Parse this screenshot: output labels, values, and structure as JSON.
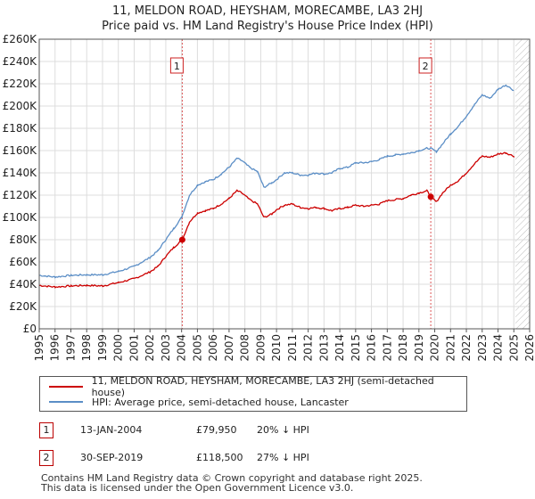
{
  "title_line1": "11, MELDON ROAD, HEYSHAM, MORECAMBE, LA3 2HJ",
  "title_line2": "Price paid vs. HM Land Registry's House Price Index (HPI)",
  "colors": {
    "red": "#cc0000",
    "blue": "#5b8ec6",
    "grid": "#dddddd",
    "hatch": "#bbbbbb",
    "marker_border": "#cc2222",
    "vline": "#dd5555"
  },
  "legend": {
    "red_label": "11, MELDON ROAD, HEYSHAM, MORECAMBE, LA3 2HJ (semi-detached house)",
    "blue_label": "HPI: Average price, semi-detached house, Lancaster"
  },
  "transactions": [
    {
      "num": "1",
      "date": "13-JAN-2004",
      "price": "£79,950",
      "hpi_change": "20% ↓ HPI"
    },
    {
      "num": "2",
      "date": "30-SEP-2019",
      "price": "£118,500",
      "hpi_change": "27% ↓ HPI"
    }
  ],
  "footer": {
    "line1": "Contains HM Land Registry data © Crown copyright and database right 2025.",
    "line2": "This data is licensed under the Open Government Licence v3.0."
  },
  "chart_data": {
    "type": "line",
    "title": "Price paid vs. HM Land Registry's House Price Index (HPI)",
    "xlim": [
      1995,
      2026
    ],
    "ylim": [
      0,
      260000
    ],
    "x_ticks": [
      "1995",
      "1996",
      "1997",
      "1998",
      "1999",
      "2000",
      "2001",
      "2002",
      "2003",
      "2004",
      "2005",
      "2006",
      "2007",
      "2008",
      "2009",
      "2010",
      "2011",
      "2012",
      "2013",
      "2014",
      "2015",
      "2016",
      "2017",
      "2018",
      "2019",
      "2020",
      "2021",
      "2022",
      "2023",
      "2024",
      "2025",
      "2026"
    ],
    "y_ticks": [
      {
        "value": 0,
        "label": "£0"
      },
      {
        "value": 20000,
        "label": "£20K"
      },
      {
        "value": 40000,
        "label": "£40K"
      },
      {
        "value": 60000,
        "label": "£60K"
      },
      {
        "value": 80000,
        "label": "£80K"
      },
      {
        "value": 100000,
        "label": "£100K"
      },
      {
        "value": 120000,
        "label": "£120K"
      },
      {
        "value": 140000,
        "label": "£140K"
      },
      {
        "value": 160000,
        "label": "£160K"
      },
      {
        "value": 180000,
        "label": "£180K"
      },
      {
        "value": 200000,
        "label": "£200K"
      },
      {
        "value": 220000,
        "label": "£220K"
      },
      {
        "value": 240000,
        "label": "£240K"
      },
      {
        "value": 260000,
        "label": "£260K"
      }
    ],
    "forecast_start": 2025.1,
    "series": [
      {
        "name": "11, MELDON ROAD, HEYSHAM, MORECAMBE, LA3 2HJ (semi-detached house)",
        "color": "#cc0000",
        "x": [
          1995,
          1996,
          1997,
          1998,
          1999,
          2000,
          2001,
          2002,
          2002.5,
          2003,
          2003.5,
          2004.04,
          2004.5,
          2005,
          2005.5,
          2006,
          2006.5,
          2007,
          2007.5,
          2007.8,
          2008.3,
          2008.8,
          2009.2,
          2009.7,
          2010,
          2010.5,
          2011,
          2011.5,
          2012,
          2012.5,
          2013,
          2013.5,
          2014,
          2014.5,
          2015,
          2015.5,
          2016,
          2016.5,
          2017,
          2017.5,
          2018,
          2018.5,
          2019,
          2019.5,
          2019.75,
          2020.1,
          2020.5,
          2021,
          2021.5,
          2022,
          2022.5,
          2023,
          2023.5,
          2024,
          2024.5,
          2025
        ],
        "y": [
          39000,
          37500,
          38500,
          39000,
          38500,
          41500,
          45000,
          51000,
          56000,
          65000,
          73000,
          79950,
          96000,
          104000,
          106000,
          108000,
          112000,
          117000,
          124000,
          122000,
          116000,
          112000,
          100000,
          103000,
          107000,
          111000,
          112000,
          109000,
          108000,
          109000,
          108000,
          106000,
          108000,
          109000,
          111000,
          110000,
          111000,
          112000,
          115000,
          116000,
          117000,
          120000,
          122000,
          124000,
          118500,
          114000,
          122000,
          129000,
          133000,
          140000,
          148000,
          155000,
          154000,
          157000,
          158000,
          155000
        ]
      },
      {
        "name": "HPI: Average price, semi-detached house, Lancaster",
        "color": "#5b8ec6",
        "x": [
          1995,
          1996,
          1997,
          1998,
          1999,
          2000,
          2001,
          2002,
          2002.5,
          2003,
          2003.5,
          2004,
          2004.5,
          2005,
          2005.5,
          2006,
          2006.5,
          2007,
          2007.5,
          2007.8,
          2008.3,
          2008.8,
          2009.2,
          2009.7,
          2010,
          2010.5,
          2011,
          2011.5,
          2012,
          2012.5,
          2013,
          2013.5,
          2014,
          2014.5,
          2015,
          2015.5,
          2016,
          2016.5,
          2017,
          2017.5,
          2018,
          2018.5,
          2019,
          2019.5,
          2019.75,
          2020.1,
          2020.5,
          2021,
          2021.5,
          2022,
          2022.5,
          2023,
          2023.5,
          2024,
          2024.5,
          2025
        ],
        "y": [
          48000,
          46500,
          48000,
          48500,
          48500,
          51500,
          56000,
          64000,
          70000,
          80000,
          90000,
          100000,
          120000,
          129000,
          132000,
          134000,
          139000,
          145000,
          153000,
          151000,
          145000,
          141000,
          127000,
          131000,
          134000,
          140000,
          140000,
          138000,
          138000,
          140000,
          139000,
          140000,
          144000,
          145000,
          149000,
          149000,
          150000,
          152000,
          155000,
          156000,
          157000,
          158000,
          160000,
          162000,
          162000,
          159000,
          166000,
          175000,
          182000,
          191000,
          201000,
          210000,
          207000,
          215000,
          219000,
          214000
        ]
      }
    ],
    "annotations": [
      {
        "label": "1",
        "x": 2004.04,
        "y": 79950
      },
      {
        "label": "2",
        "x": 2019.75,
        "y": 118500
      }
    ]
  }
}
